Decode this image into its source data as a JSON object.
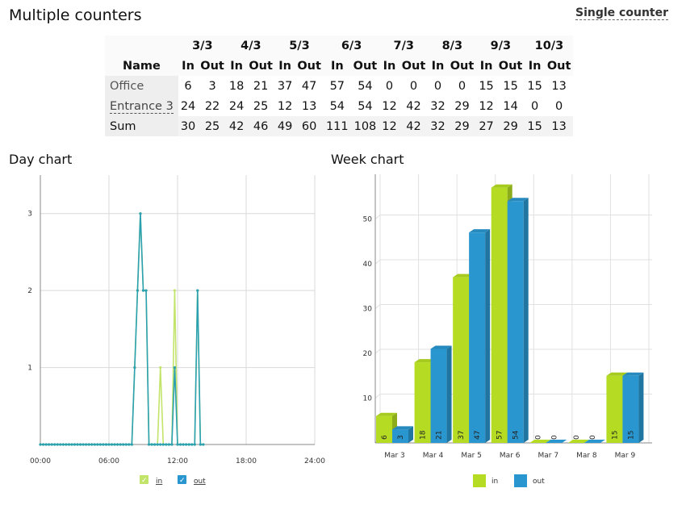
{
  "header": {
    "title": "Multiple counters",
    "single_counter_link": "Single counter"
  },
  "table": {
    "name_header": "Name",
    "dates": [
      "3/3",
      "4/3",
      "5/3",
      "6/3",
      "7/3",
      "8/3",
      "9/3",
      "10/3"
    ],
    "in_label": "In",
    "out_label": "Out",
    "rows": [
      {
        "name": "Office",
        "values": [
          "6",
          "3",
          "18",
          "21",
          "37",
          "47",
          "57",
          "54",
          "0",
          "0",
          "0",
          "0",
          "15",
          "15",
          "15",
          "13"
        ]
      },
      {
        "name": "Entrance 3",
        "values": [
          "24",
          "22",
          "24",
          "25",
          "12",
          "13",
          "54",
          "54",
          "12",
          "42",
          "32",
          "29",
          "12",
          "14",
          "0",
          "0"
        ]
      },
      {
        "name": "Sum",
        "values": [
          "30",
          "25",
          "42",
          "46",
          "49",
          "60",
          "111",
          "108",
          "12",
          "42",
          "32",
          "29",
          "27",
          "29",
          "15",
          "13"
        ]
      }
    ]
  },
  "day_chart": {
    "heading": "Day chart",
    "legend": {
      "in": "in",
      "out": "out"
    }
  },
  "week_chart": {
    "heading": "Week chart",
    "legend": {
      "in": "in",
      "out": "out"
    }
  },
  "colors": {
    "in": "#b5dc22",
    "out": "#2a96cf",
    "day_out": "#2aa0b2",
    "day_in": "#c3e46a"
  },
  "chart_data": [
    {
      "type": "line",
      "title": "Day chart",
      "x_ticks": [
        "00:00",
        "06:00",
        "12:00",
        "18:00",
        "24:00"
      ],
      "xlim_hours": [
        0,
        24
      ],
      "ylim": [
        0,
        3.5
      ],
      "y_ticks": [
        1,
        2,
        3
      ],
      "grid": true,
      "legend": "bottom",
      "series": [
        {
          "name": "in",
          "points": [
            [
              0,
              0
            ],
            [
              8.0,
              0
            ],
            [
              8.25,
              1
            ],
            [
              8.5,
              2
            ],
            [
              8.75,
              3
            ],
            [
              9.0,
              2
            ],
            [
              9.25,
              2
            ],
            [
              9.5,
              0
            ],
            [
              10.25,
              0
            ],
            [
              10.5,
              1
            ],
            [
              10.75,
              0
            ],
            [
              11.5,
              0
            ],
            [
              11.75,
              2
            ],
            [
              12.0,
              0
            ],
            [
              13.5,
              0
            ],
            [
              13.75,
              2
            ],
            [
              14.0,
              0
            ],
            [
              14.25,
              0
            ]
          ]
        },
        {
          "name": "out",
          "points": [
            [
              0,
              0
            ],
            [
              8.0,
              0
            ],
            [
              8.25,
              1
            ],
            [
              8.5,
              2
            ],
            [
              8.75,
              3
            ],
            [
              9.0,
              2
            ],
            [
              9.25,
              2
            ],
            [
              9.5,
              0
            ],
            [
              11.5,
              0
            ],
            [
              11.75,
              1
            ],
            [
              12.0,
              0
            ],
            [
              13.5,
              0
            ],
            [
              13.75,
              2
            ],
            [
              14.0,
              0
            ],
            [
              14.25,
              0
            ]
          ]
        }
      ]
    },
    {
      "type": "bar",
      "title": "Week chart",
      "categories": [
        "Mar 3",
        "Mar 4",
        "Mar 5",
        "Mar 6",
        "Mar 7",
        "Mar 8",
        "Mar 9"
      ],
      "ylim": [
        0,
        60
      ],
      "y_ticks": [
        10,
        20,
        30,
        40,
        50
      ],
      "grid": true,
      "legend": "bottom",
      "series": [
        {
          "name": "in",
          "values": [
            6,
            18,
            37,
            57,
            0,
            0,
            15
          ]
        },
        {
          "name": "out",
          "values": [
            3,
            21,
            47,
            54,
            0,
            0,
            15
          ]
        }
      ]
    }
  ]
}
